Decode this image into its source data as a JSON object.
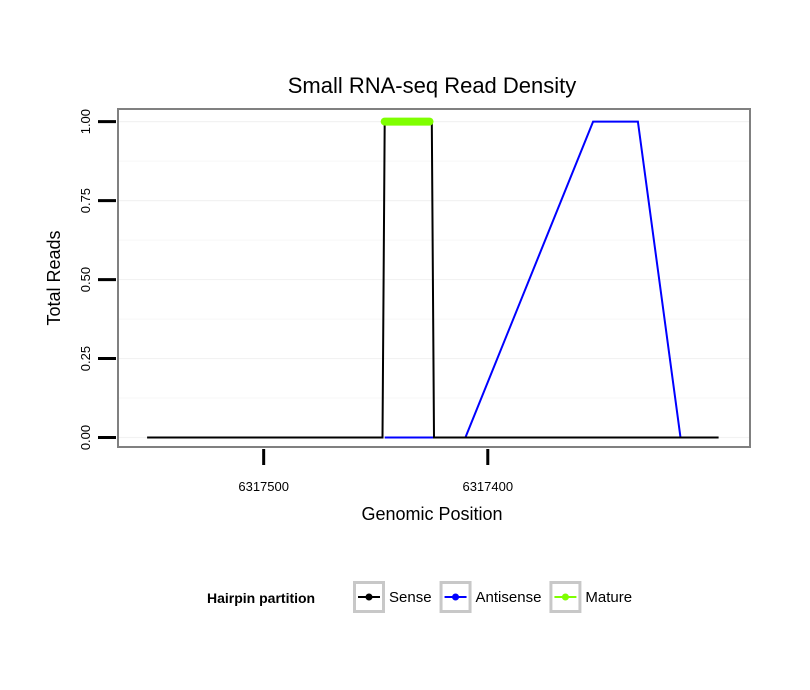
{
  "chart_data": {
    "type": "line",
    "title": "Small RNA-seq Read Density",
    "xlabel": "Genomic Position",
    "ylabel": "Total Reads",
    "x_reversed": true,
    "xlim": [
      6317565,
      6317283
    ],
    "ylim": [
      -0.03,
      1.04
    ],
    "x_ticks": [
      6317500,
      6317400
    ],
    "x_tick_labels": [
      "6317500",
      "6317400"
    ],
    "y_ticks": [
      0,
      0.25,
      0.5,
      0.75,
      1.0
    ],
    "y_tick_labels": [
      "0.00",
      "0.25",
      "0.50",
      "0.75",
      "1.00"
    ],
    "grid": true,
    "series": [
      {
        "name": "Antisense",
        "color": "#0000ff",
        "x": [
          6317446,
          6317424,
          6317410,
          6317353,
          6317333,
          6317314
        ],
        "y": [
          0,
          0,
          0,
          1,
          1,
          0
        ]
      },
      {
        "name": "Sense",
        "color": "#000000",
        "x": [
          6317552,
          6317447,
          6317446,
          6317425,
          6317424,
          6317297
        ],
        "y": [
          0,
          0,
          1,
          1,
          0,
          0
        ]
      },
      {
        "name": "Mature",
        "color": "#7fff00",
        "x": [
          6317446,
          6317426
        ],
        "y": [
          1,
          1
        ]
      }
    ],
    "legend": {
      "title": "Hairpin partition",
      "position": "bottom",
      "items": [
        "Sense",
        "Antisense",
        "Mature"
      ]
    }
  }
}
